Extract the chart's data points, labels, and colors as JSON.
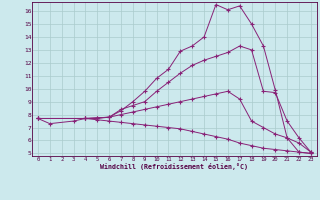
{
  "xlabel": "Windchill (Refroidissement éolien,°C)",
  "bg_color": "#cce9ed",
  "grid_color": "#aacccc",
  "line_color": "#882277",
  "xmin": 0,
  "xmax": 23,
  "ymin": 5,
  "ymax": 16,
  "yticks": [
    5,
    6,
    7,
    8,
    9,
    10,
    11,
    12,
    13,
    14,
    15,
    16
  ],
  "xticks": [
    0,
    1,
    2,
    3,
    4,
    5,
    6,
    7,
    8,
    9,
    10,
    11,
    12,
    13,
    14,
    15,
    16,
    17,
    18,
    19,
    20,
    21,
    22,
    23
  ],
  "lines": [
    {
      "x": [
        0,
        1,
        3,
        4,
        5,
        6,
        7,
        8,
        9,
        10,
        11,
        12,
        13,
        14,
        15,
        16,
        17,
        18,
        19,
        20,
        21,
        22,
        23
      ],
      "y": [
        7.7,
        7.3,
        7.5,
        7.7,
        7.7,
        7.8,
        8.3,
        9.0,
        9.8,
        10.8,
        11.5,
        12.9,
        13.3,
        14.0,
        16.5,
        16.1,
        16.4,
        15.0,
        13.3,
        9.9,
        6.2,
        5.1,
        5.0
      ]
    },
    {
      "x": [
        0,
        4,
        6,
        7,
        8,
        9,
        10,
        11,
        12,
        13,
        14,
        15,
        16,
        17,
        18,
        19,
        20,
        21,
        22,
        23
      ],
      "y": [
        7.7,
        7.7,
        7.8,
        8.4,
        8.7,
        9.0,
        9.8,
        10.5,
        11.2,
        11.8,
        12.2,
        12.5,
        12.8,
        13.3,
        13.0,
        9.8,
        9.7,
        7.5,
        6.2,
        5.1
      ]
    },
    {
      "x": [
        0,
        4,
        5,
        6,
        7,
        8,
        9,
        10,
        11,
        12,
        13,
        14,
        15,
        16,
        17,
        18,
        19,
        20,
        21,
        22,
        23
      ],
      "y": [
        7.7,
        7.7,
        7.75,
        7.8,
        8.0,
        8.2,
        8.4,
        8.6,
        8.8,
        9.0,
        9.2,
        9.4,
        9.6,
        9.8,
        9.2,
        7.5,
        7.0,
        6.5,
        6.2,
        5.8,
        5.1
      ]
    },
    {
      "x": [
        0,
        4,
        5,
        6,
        7,
        8,
        9,
        10,
        11,
        12,
        13,
        14,
        15,
        16,
        17,
        18,
        19,
        20,
        21,
        22,
        23
      ],
      "y": [
        7.7,
        7.7,
        7.6,
        7.5,
        7.4,
        7.3,
        7.2,
        7.1,
        7.0,
        6.9,
        6.7,
        6.5,
        6.3,
        6.1,
        5.8,
        5.6,
        5.4,
        5.3,
        5.2,
        5.1,
        5.0
      ]
    }
  ]
}
